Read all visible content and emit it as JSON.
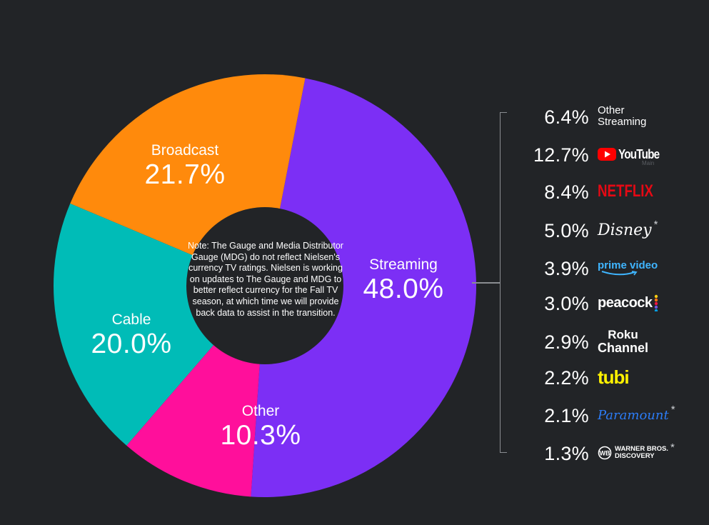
{
  "chart_data": {
    "type": "pie",
    "style": "donut",
    "slices": [
      {
        "label": "Streaming",
        "value": 48.0,
        "display": "48.0%",
        "color": "#7c2ff5"
      },
      {
        "label": "Other",
        "value": 10.3,
        "display": "10.3%",
        "color": "#ff0f9b"
      },
      {
        "label": "Cable",
        "value": 20.0,
        "display": "20.0%",
        "color": "#00bcb7"
      },
      {
        "label": "Broadcast",
        "value": 21.7,
        "display": "21.7%",
        "color": "#ff8a0c"
      }
    ],
    "center_note": "Note: The Gauge and Media Distributor Gauge (MDG) do not reflect Nielsen's currency TV ratings. Nielsen is working on updates to The Gauge and MDG to better reflect currency for the Fall TV season, at which time we will provide back data to assist in the transition.",
    "streaming_breakdown": [
      {
        "value": 6.4,
        "display": "6.4%",
        "brand": "Other Streaming",
        "line1": "Other",
        "line2": "Streaming"
      },
      {
        "value": 12.7,
        "display": "12.7%",
        "brand": "YouTube Main",
        "text": "YouTube",
        "sub": "Main"
      },
      {
        "value": 8.4,
        "display": "8.4%",
        "brand": "NETFLIX"
      },
      {
        "value": 5.0,
        "display": "5.0%",
        "brand": "Disney",
        "asterisk": "*"
      },
      {
        "value": 3.9,
        "display": "3.9%",
        "brand": "prime video"
      },
      {
        "value": 3.0,
        "display": "3.0%",
        "brand": "peacock"
      },
      {
        "value": 2.9,
        "display": "2.9%",
        "brand": "Roku Channel",
        "line1": "Roku",
        "line2": "Channel"
      },
      {
        "value": 2.2,
        "display": "2.2%",
        "brand": "tubi"
      },
      {
        "value": 2.1,
        "display": "2.1%",
        "brand": "Paramount",
        "asterisk": "*"
      },
      {
        "value": 1.3,
        "display": "1.3%",
        "brand": "Warner Bros. Discovery",
        "line1": "WARNER BROS.",
        "line2": "DISCOVERY",
        "asterisk": "*"
      }
    ]
  }
}
